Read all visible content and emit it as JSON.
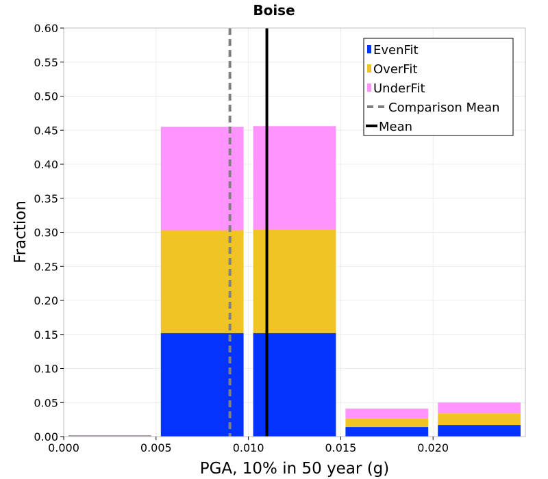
{
  "chart_data": {
    "type": "bar",
    "stacked": true,
    "title": "Boise",
    "xlabel": "PGA, 10% in 50 year (g)",
    "ylabel": "Fraction",
    "xlim": [
      0.0,
      0.025
    ],
    "ylim": [
      0.0,
      0.6
    ],
    "x_ticks": [
      "0.000",
      "0.005",
      "0.010",
      "0.015",
      "0.020"
    ],
    "x_tick_values": [
      0.0,
      0.005,
      0.01,
      0.015,
      0.02
    ],
    "y_ticks": [
      "0.00",
      "0.05",
      "0.10",
      "0.15",
      "0.20",
      "0.25",
      "0.30",
      "0.35",
      "0.40",
      "0.45",
      "0.50",
      "0.55",
      "0.60"
    ],
    "y_tick_values": [
      0.0,
      0.05,
      0.1,
      0.15,
      0.2,
      0.25,
      0.3,
      0.35,
      0.4,
      0.45,
      0.5,
      0.55,
      0.6
    ],
    "bins": [
      {
        "start": 0.0,
        "end": 0.005
      },
      {
        "start": 0.005,
        "end": 0.01
      },
      {
        "start": 0.01,
        "end": 0.015
      },
      {
        "start": 0.015,
        "end": 0.02
      },
      {
        "start": 0.02,
        "end": 0.025
      }
    ],
    "series": [
      {
        "name": "EvenFit",
        "color": "#0433ff",
        "values": [
          0.0,
          0.152,
          0.152,
          0.014,
          0.017
        ]
      },
      {
        "name": "OverFit",
        "color": "#f0c423",
        "values": [
          0.0,
          0.151,
          0.152,
          0.013,
          0.017
        ]
      },
      {
        "name": "UnderFit",
        "color": "#ff94ff",
        "values": [
          0.0,
          0.152,
          0.152,
          0.014,
          0.016
        ]
      }
    ],
    "lines": [
      {
        "name": "Comparison Mean",
        "x": 0.009,
        "color": "#808080",
        "style": "dashed"
      },
      {
        "name": "Mean",
        "x": 0.011,
        "color": "#000000",
        "style": "solid"
      }
    ],
    "grid": true,
    "legend_position": "top-right"
  }
}
